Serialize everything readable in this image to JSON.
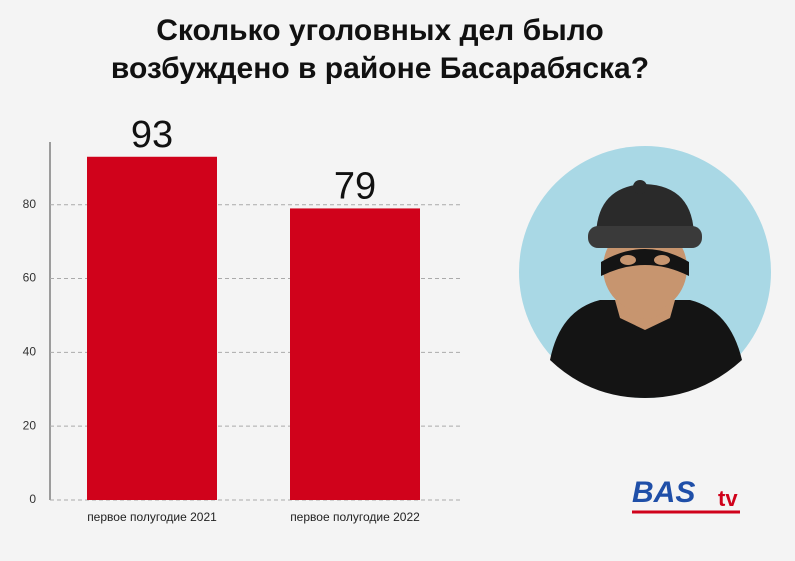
{
  "chart_data": {
    "type": "bar",
    "title": "Сколько уголовных дел было возбуждено в районе Басарабяска?",
    "categories": [
      "первое полугодие 2021",
      "первое полугодие 2022"
    ],
    "values": [
      93,
      79
    ],
    "color": "#d0021b",
    "ylim": [
      0,
      97
    ],
    "yticks": [
      0,
      20,
      40,
      60,
      80
    ],
    "grid": true
  },
  "logo": {
    "main": "BAS",
    "suffix": "tv"
  }
}
